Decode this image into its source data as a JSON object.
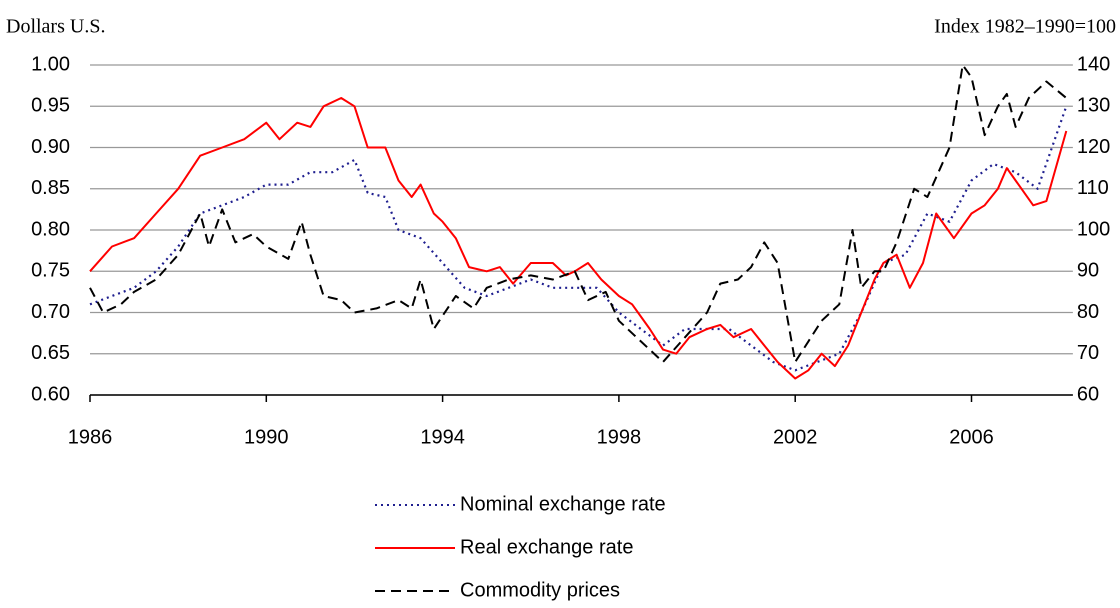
{
  "chart_data": {
    "type": "line",
    "y_label": "Dollars U.S.",
    "y2_label": "Index 1982–1990=100",
    "xlim": [
      1986,
      2008.3
    ],
    "xticks": [
      1986,
      1990,
      1994,
      1998,
      2002,
      2006
    ],
    "ylim": [
      0.6,
      1.0
    ],
    "yticks": [
      {
        "value": 0.6,
        "label": "0.60"
      },
      {
        "value": 0.65,
        "label": "0.65"
      },
      {
        "value": 0.7,
        "label": "0.70"
      },
      {
        "value": 0.75,
        "label": "0.75"
      },
      {
        "value": 0.8,
        "label": "0.80"
      },
      {
        "value": 0.85,
        "label": "0.85"
      },
      {
        "value": 0.9,
        "label": "0.90"
      },
      {
        "value": 0.95,
        "label": "0.95"
      },
      {
        "value": 1.0,
        "label": "1.00"
      }
    ],
    "y2lim": [
      60,
      140
    ],
    "y2ticks": [
      60,
      70,
      80,
      90,
      100,
      110,
      120,
      130,
      140
    ],
    "grid": true,
    "series": [
      {
        "name": "Nominal exchange rate",
        "color": "#1f1f8f",
        "dash": "dotted",
        "x": [
          1986.0,
          1986.5,
          1987.0,
          1987.5,
          1988.0,
          1988.5,
          1989.0,
          1989.5,
          1990.0,
          1990.5,
          1991.0,
          1991.5,
          1992.0,
          1992.3,
          1992.7,
          1993.0,
          1993.5,
          1994.0,
          1994.5,
          1995.0,
          1995.5,
          1996.0,
          1996.5,
          1997.0,
          1997.5,
          1998.0,
          1998.5,
          1999.0,
          1999.5,
          2000.0,
          2000.5,
          2001.0,
          2001.5,
          2002.0,
          2002.5,
          2003.0,
          2003.5,
          2004.0,
          2004.5,
          2005.0,
          2005.5,
          2006.0,
          2006.5,
          2007.0,
          2007.5,
          2008.15
        ],
        "values": [
          0.71,
          0.72,
          0.73,
          0.75,
          0.78,
          0.82,
          0.83,
          0.84,
          0.855,
          0.855,
          0.87,
          0.87,
          0.885,
          0.845,
          0.84,
          0.8,
          0.79,
          0.76,
          0.73,
          0.72,
          0.73,
          0.74,
          0.73,
          0.73,
          0.73,
          0.7,
          0.68,
          0.66,
          0.68,
          0.68,
          0.68,
          0.66,
          0.64,
          0.63,
          0.64,
          0.65,
          0.7,
          0.76,
          0.77,
          0.82,
          0.81,
          0.86,
          0.88,
          0.87,
          0.85,
          0.95
        ]
      },
      {
        "name": "Real exchange rate",
        "color": "#ff0000",
        "dash": "solid",
        "x": [
          1986.0,
          1986.5,
          1987.0,
          1987.5,
          1988.0,
          1988.5,
          1989.0,
          1989.5,
          1990.0,
          1990.3,
          1990.7,
          1991.0,
          1991.3,
          1991.7,
          1992.0,
          1992.3,
          1992.7,
          1993.0,
          1993.3,
          1993.5,
          1993.8,
          1994.0,
          1994.3,
          1994.6,
          1995.0,
          1995.3,
          1995.6,
          1996.0,
          1996.5,
          1996.8,
          1997.0,
          1997.3,
          1997.6,
          1998.0,
          1998.3,
          1998.7,
          1999.0,
          1999.3,
          1999.6,
          2000.0,
          2000.3,
          2000.6,
          2001.0,
          2001.3,
          2001.6,
          2002.0,
          2002.3,
          2002.6,
          2002.9,
          2003.2,
          2003.5,
          2003.8,
          2004.0,
          2004.3,
          2004.6,
          2004.9,
          2005.2,
          2005.6,
          2006.0,
          2006.3,
          2006.6,
          2006.8,
          2007.0,
          2007.4,
          2007.7,
          2008.15
        ],
        "values": [
          0.75,
          0.78,
          0.79,
          0.82,
          0.85,
          0.89,
          0.9,
          0.91,
          0.93,
          0.91,
          0.93,
          0.925,
          0.95,
          0.96,
          0.95,
          0.9,
          0.9,
          0.86,
          0.84,
          0.855,
          0.82,
          0.81,
          0.79,
          0.755,
          0.75,
          0.755,
          0.735,
          0.76,
          0.76,
          0.745,
          0.75,
          0.76,
          0.74,
          0.72,
          0.71,
          0.68,
          0.655,
          0.65,
          0.67,
          0.68,
          0.685,
          0.67,
          0.68,
          0.66,
          0.64,
          0.62,
          0.63,
          0.65,
          0.635,
          0.66,
          0.7,
          0.74,
          0.76,
          0.77,
          0.73,
          0.76,
          0.82,
          0.79,
          0.82,
          0.83,
          0.85,
          0.875,
          0.86,
          0.83,
          0.835,
          0.92
        ]
      },
      {
        "name": "Commodity prices",
        "color": "#000000",
        "dash": "dashed",
        "axis": "y2",
        "x": [
          1986.0,
          1986.3,
          1986.7,
          1987.0,
          1987.5,
          1988.0,
          1988.5,
          1988.7,
          1989.0,
          1989.3,
          1989.7,
          1990.0,
          1990.5,
          1990.8,
          1991.0,
          1991.3,
          1991.7,
          1992.0,
          1992.5,
          1993.0,
          1993.3,
          1993.5,
          1993.8,
          1994.3,
          1994.7,
          1995.0,
          1995.5,
          1996.0,
          1996.5,
          1997.0,
          1997.3,
          1997.7,
          1998.0,
          1998.5,
          1999.0,
          1999.5,
          2000.0,
          2000.3,
          2000.7,
          2001.0,
          2001.3,
          2001.6,
          2002.0,
          2002.3,
          2002.6,
          2003.0,
          2003.3,
          2003.5,
          2003.8,
          2004.0,
          2004.3,
          2004.7,
          2005.0,
          2005.5,
          2005.8,
          2006.0,
          2006.3,
          2006.6,
          2006.8,
          2007.0,
          2007.3,
          2007.7,
          2008.15
        ],
        "values": [
          86,
          80,
          82,
          85,
          88,
          94,
          104,
          96,
          105,
          97,
          99,
          96,
          93,
          102,
          94,
          84,
          83,
          80,
          81,
          83,
          81,
          88,
          76,
          84,
          81,
          86,
          88,
          89,
          88,
          90,
          83,
          85,
          78,
          73,
          68,
          74,
          80,
          87,
          88,
          91,
          97,
          92,
          68,
          73,
          78,
          82,
          100,
          86,
          90,
          90,
          97,
          110,
          108,
          120,
          140,
          137,
          123,
          130,
          133,
          125,
          132,
          136,
          132
        ]
      }
    ]
  }
}
